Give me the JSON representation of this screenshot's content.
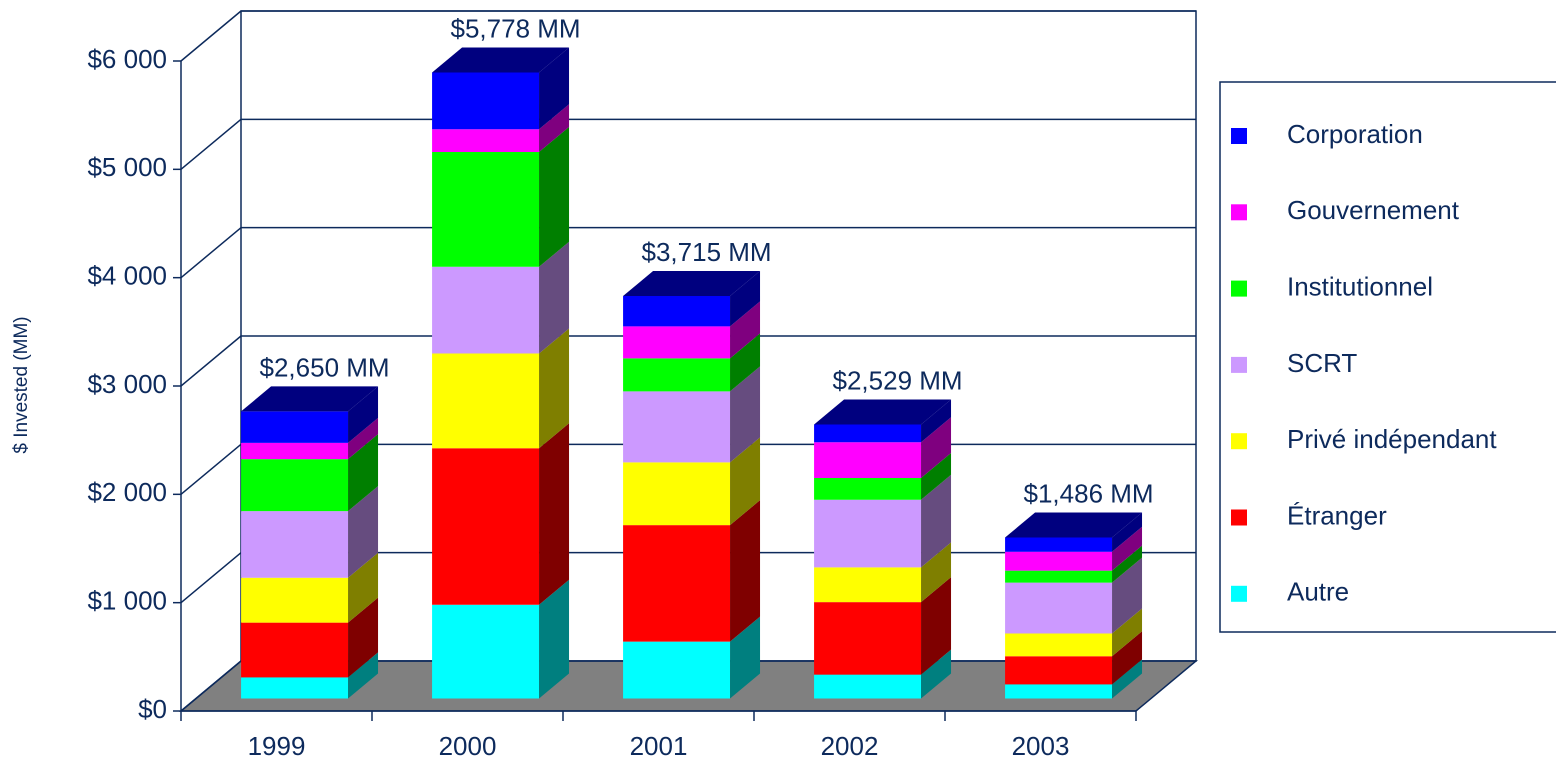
{
  "chart_data": {
    "type": "bar3d_stacked",
    "y_label": "$ Invested (MM)",
    "categories": [
      "1999",
      "2000",
      "2001",
      "2002",
      "2003"
    ],
    "series": [
      {
        "name": "Autre",
        "color": "#00ffff",
        "values": [
          195,
          865,
          525,
          220,
          130
        ]
      },
      {
        "name": "Étranger",
        "color": "#ff0000",
        "values": [
          505,
          1445,
          1075,
          670,
          260
        ]
      },
      {
        "name": "Privé indépendant",
        "color": "#ffff00",
        "values": [
          415,
          875,
          580,
          320,
          210
        ]
      },
      {
        "name": "SCRT",
        "color": "#cc99ff",
        "values": [
          615,
          800,
          655,
          625,
          470
        ]
      },
      {
        "name": "Institutionnel",
        "color": "#00ff00",
        "values": [
          480,
          1060,
          305,
          200,
          110
        ]
      },
      {
        "name": "Gouvernement",
        "color": "#ff00ff",
        "values": [
          150,
          210,
          295,
          330,
          175
        ]
      },
      {
        "name": "Corporation",
        "color": "#0000ff",
        "values": [
          290,
          523,
          280,
          164,
          131
        ]
      }
    ],
    "totals": [
      2650,
      5778,
      3715,
      2529,
      1486
    ],
    "total_labels": [
      "$2,650 MM",
      "$5,778 MM",
      "$3,715 MM",
      "$2,529 MM",
      "$1,486 MM"
    ],
    "ylim": [
      0,
      6000
    ],
    "yticks": [
      {
        "value": 0,
        "label": "$0"
      },
      {
        "value": 1000,
        "label": "$1 000"
      },
      {
        "value": 2000,
        "label": "$2 000"
      },
      {
        "value": 3000,
        "label": "$3 000"
      },
      {
        "value": 4000,
        "label": "$4 000"
      },
      {
        "value": 5000,
        "label": "$5 000"
      },
      {
        "value": 6000,
        "label": "$6 000"
      }
    ],
    "grid": true,
    "legend": "right"
  }
}
